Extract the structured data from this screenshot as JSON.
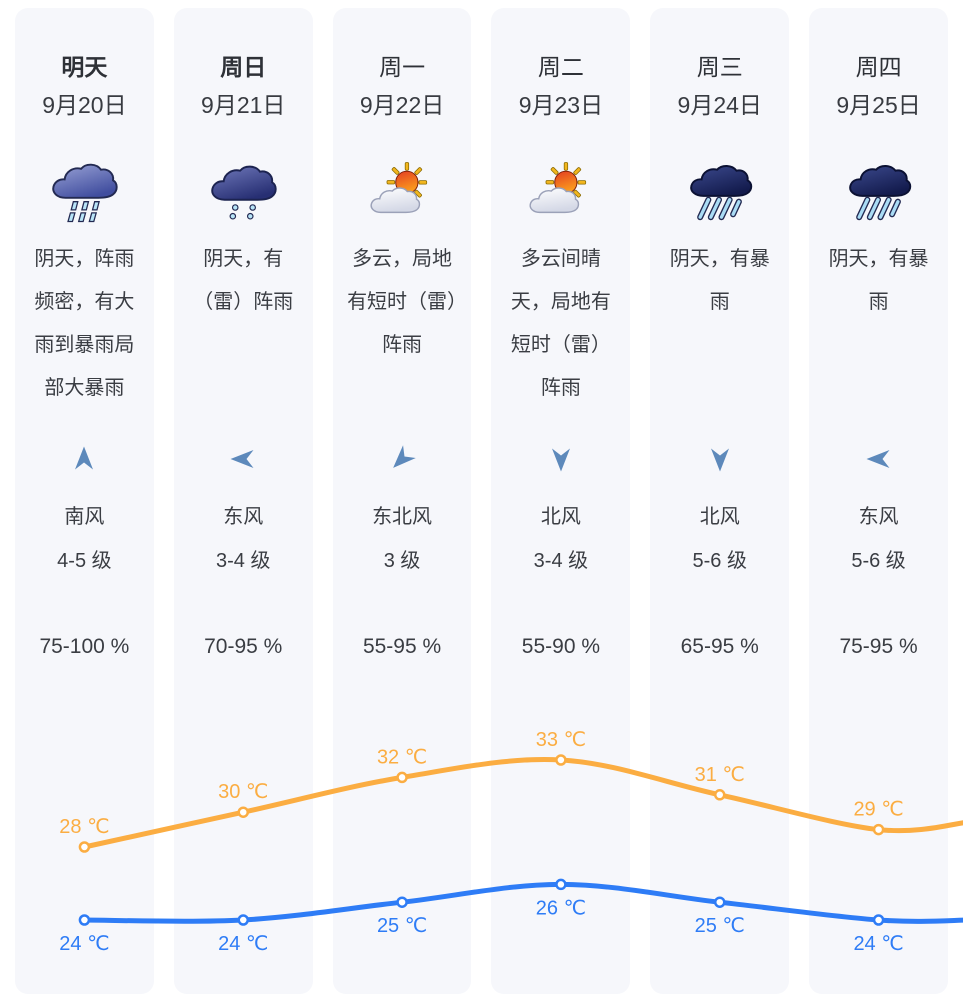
{
  "panel": {
    "background": "#ffffff",
    "card_background": "#f6f7fb"
  },
  "colors": {
    "high_line": "#FBAD42",
    "low_line": "#2E7CF6",
    "wind_arrow": "#5d89bb",
    "text_dark": "#3a3d43"
  },
  "unit": "℃",
  "days": [
    {
      "title": "明天",
      "emphasis": true,
      "date": "9月20日",
      "icon": "heavy-rain-icon",
      "desc": "阴天，阵雨频密，有大雨到暴雨局部大暴雨",
      "wind_dir": "南风",
      "wind_level": "4-5 级",
      "wind_deg": 0,
      "humidity": "75-100 %",
      "high": 28,
      "low": 24
    },
    {
      "title": "周日",
      "emphasis": true,
      "date": "9月21日",
      "icon": "rain-drops-icon",
      "desc": "阴天，有（雷）阵雨",
      "wind_dir": "东风",
      "wind_level": "3-4 级",
      "wind_deg": 270,
      "humidity": "70-95 %",
      "high": 30,
      "low": 24
    },
    {
      "title": "周一",
      "emphasis": false,
      "date": "9月22日",
      "icon": "sun-cloud-icon",
      "desc": "多云，局地有短时（雷）阵雨",
      "wind_dir": "东北风",
      "wind_level": "3 级",
      "wind_deg": 225,
      "humidity": "55-95 %",
      "high": 32,
      "low": 25
    },
    {
      "title": "周二",
      "emphasis": false,
      "date": "9月23日",
      "icon": "sun-cloud-icon",
      "desc": "多云间晴天，局地有短时（雷）阵雨",
      "wind_dir": "北风",
      "wind_level": "3-4 级",
      "wind_deg": 180,
      "humidity": "55-90 %",
      "high": 33,
      "low": 26
    },
    {
      "title": "周三",
      "emphasis": false,
      "date": "9月24日",
      "icon": "storm-rain-icon",
      "desc": "阴天，有暴雨",
      "wind_dir": "北风",
      "wind_level": "5-6 级",
      "wind_deg": 180,
      "humidity": "65-95 %",
      "high": 31,
      "low": 25
    },
    {
      "title": "周四",
      "emphasis": false,
      "date": "9月25日",
      "icon": "storm-rain-icon",
      "desc": "阴天，有暴雨",
      "wind_dir": "东风",
      "wind_level": "5-6 级",
      "wind_deg": 270,
      "humidity": "75-95 %",
      "high": 29,
      "low": 24
    }
  ],
  "chart_data": {
    "type": "line",
    "categories": [
      "9月20日",
      "9月21日",
      "9月22日",
      "9月23日",
      "9月24日",
      "9月25日"
    ],
    "series": [
      {
        "name": "high-temperature",
        "color": "#FBAD42",
        "values": [
          28,
          30,
          32,
          33,
          31,
          29
        ]
      },
      {
        "name": "low-temperature",
        "color": "#2E7CF6",
        "values": [
          24,
          24,
          25,
          26,
          25,
          24
        ]
      }
    ],
    "unit": "℃",
    "legend": "none",
    "grid": false,
    "labels": "each-point"
  }
}
